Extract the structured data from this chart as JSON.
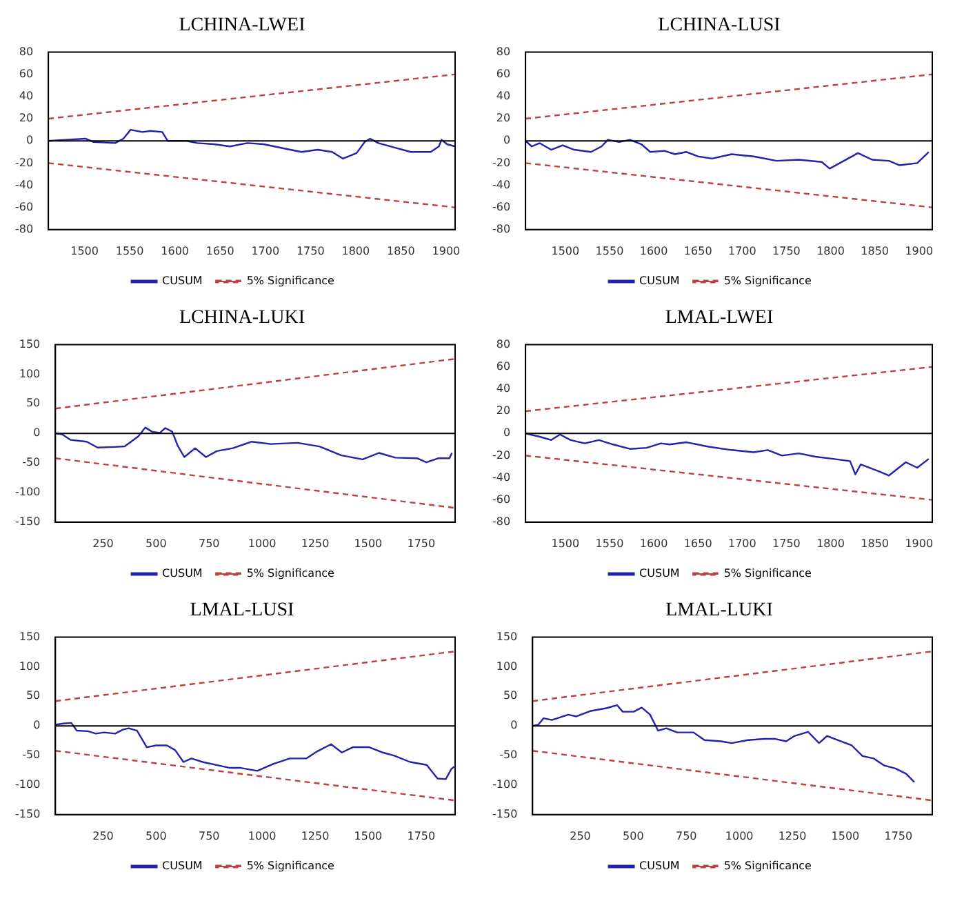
{
  "chart_data": [
    {
      "type": "line",
      "title": "LCHINA-LWEI",
      "legend": "bottom",
      "grid": false,
      "xlim": [
        1460,
        1910
      ],
      "xticks": [
        1500,
        1550,
        1600,
        1650,
        1700,
        1750,
        1800,
        1850,
        1900
      ],
      "ylim": [
        -80,
        80
      ],
      "yticks": [
        -80,
        -60,
        -40,
        -20,
        0,
        20,
        40,
        60,
        80
      ],
      "ref_lines": [
        {
          "axis": "y",
          "value": 0,
          "color": "#000000"
        }
      ],
      "series": [
        {
          "name": "CUSUM",
          "color": "#2222aa",
          "line_style": "solid",
          "x": [
            1460,
            1479,
            1501,
            1510,
            1534,
            1543,
            1551,
            1564,
            1573,
            1586,
            1592,
            1613,
            1625,
            1643,
            1661,
            1680,
            1698,
            1722,
            1740,
            1758,
            1774,
            1786,
            1801,
            1810,
            1816,
            1825,
            1843,
            1861,
            1883,
            1892,
            1895,
            1901,
            1910
          ],
          "values": [
            0,
            1,
            2,
            -1,
            -2,
            2,
            10,
            8,
            9,
            8,
            0,
            0,
            -2,
            -3,
            -5,
            -2,
            -3,
            -7,
            -10,
            -8,
            -10,
            -16,
            -11,
            -1,
            2,
            -2,
            -6,
            -10,
            -10,
            -5,
            1,
            -3,
            -5
          ]
        },
        {
          "name": "5% Significance",
          "color": "#c04040",
          "line_style": "dashed",
          "x": [
            1460,
            1910
          ],
          "values": [
            20,
            60
          ]
        },
        {
          "color": "#c04040",
          "line_style": "dashed",
          "x": [
            1460,
            1910
          ],
          "values": [
            -20,
            -60
          ]
        }
      ]
    },
    {
      "type": "line",
      "title": "LCHINA-LUSI",
      "legend": "bottom",
      "grid": false,
      "xlim": [
        1455,
        1915
      ],
      "xticks": [
        1500,
        1550,
        1600,
        1650,
        1700,
        1750,
        1800,
        1850,
        1900
      ],
      "ylim": [
        -80,
        80
      ],
      "yticks": [
        -80,
        -60,
        -40,
        -20,
        0,
        20,
        40,
        60,
        80
      ],
      "ref_lines": [
        {
          "axis": "y",
          "value": 0,
          "color": "#000000"
        }
      ],
      "series": [
        {
          "name": "CUSUM",
          "color": "#2222aa",
          "line_style": "solid",
          "x": [
            1455,
            1462,
            1471,
            1484,
            1497,
            1510,
            1529,
            1541,
            1548,
            1561,
            1573,
            1586,
            1596,
            1612,
            1624,
            1637,
            1650,
            1666,
            1688,
            1713,
            1739,
            1764,
            1790,
            1799,
            1815,
            1831,
            1847,
            1866,
            1878,
            1898,
            1911
          ],
          "values": [
            0,
            -5,
            -2,
            -8,
            -4,
            -8,
            -10,
            -5,
            1,
            -1,
            1,
            -3,
            -10,
            -9,
            -12,
            -10,
            -14,
            -16,
            -12,
            -14,
            -18,
            -17,
            -19,
            -25,
            -18,
            -11,
            -17,
            -18,
            -22,
            -20,
            -10
          ]
        },
        {
          "name": "5% Significance",
          "color": "#c04040",
          "line_style": "dashed",
          "x": [
            1455,
            1915
          ],
          "values": [
            20,
            60
          ]
        },
        {
          "color": "#c04040",
          "line_style": "dashed",
          "x": [
            1455,
            1915
          ],
          "values": [
            -20,
            -60
          ]
        }
      ]
    },
    {
      "type": "line",
      "title": "LCHINA-LUKI",
      "legend": "bottom",
      "grid": false,
      "xlim": [
        25,
        1910
      ],
      "xticks": [
        250,
        500,
        750,
        1000,
        1250,
        1500,
        1750
      ],
      "ylim": [
        -150,
        150
      ],
      "yticks": [
        -150,
        -100,
        -50,
        0,
        50,
        100,
        150
      ],
      "ref_lines": [
        {
          "axis": "y",
          "value": 0,
          "color": "#000000"
        }
      ],
      "series": [
        {
          "name": "CUSUM",
          "color": "#2222aa",
          "line_style": "solid",
          "x": [
            28,
            59,
            97,
            173,
            224,
            301,
            352,
            416,
            449,
            480,
            518,
            543,
            576,
            602,
            633,
            684,
            735,
            786,
            862,
            951,
            1041,
            1168,
            1270,
            1372,
            1474,
            1551,
            1628,
            1730,
            1775,
            1832,
            1883,
            1895
          ],
          "values": [
            0,
            -2,
            -11,
            -14,
            -24,
            -23,
            -22,
            -5,
            10,
            3,
            1,
            9,
            3,
            -21,
            -40,
            -25,
            -40,
            -30,
            -25,
            -14,
            -18,
            -16,
            -22,
            -37,
            -44,
            -33,
            -41,
            -42,
            -49,
            -42,
            -42,
            -33
          ]
        },
        {
          "name": "5% Significance",
          "color": "#c04040",
          "line_style": "dashed",
          "x": [
            25,
            1910
          ],
          "values": [
            42,
            126
          ]
        },
        {
          "color": "#c04040",
          "line_style": "dashed",
          "x": [
            25,
            1910
          ],
          "values": [
            -42,
            -126
          ]
        }
      ]
    },
    {
      "type": "line",
      "title": "LMAL-LWEI",
      "legend": "bottom",
      "grid": false,
      "xlim": [
        1455,
        1915
      ],
      "xticks": [
        1500,
        1550,
        1600,
        1650,
        1700,
        1750,
        1800,
        1850,
        1900
      ],
      "ylim": [
        -80,
        80
      ],
      "yticks": [
        -80,
        -60,
        -40,
        -20,
        0,
        20,
        40,
        60,
        80
      ],
      "ref_lines": [
        {
          "axis": "y",
          "value": 0,
          "color": "#000000"
        }
      ],
      "series": [
        {
          "name": "CUSUM",
          "color": "#2222aa",
          "line_style": "solid",
          "x": [
            1455,
            1471,
            1484,
            1494,
            1506,
            1522,
            1538,
            1554,
            1573,
            1592,
            1608,
            1618,
            1637,
            1662,
            1688,
            1713,
            1729,
            1745,
            1764,
            1783,
            1803,
            1822,
            1828,
            1834,
            1854,
            1866,
            1885,
            1898,
            1911
          ],
          "values": [
            0,
            -3,
            -6,
            -1,
            -6,
            -9,
            -6,
            -10,
            -14,
            -13,
            -9,
            -10,
            -8,
            -12,
            -15,
            -17,
            -15,
            -20,
            -18,
            -21,
            -23,
            -25,
            -37,
            -28,
            -34,
            -38,
            -26,
            -31,
            -23
          ]
        },
        {
          "name": "5% Significance",
          "color": "#c04040",
          "line_style": "dashed",
          "x": [
            1455,
            1915
          ],
          "values": [
            20,
            60
          ]
        },
        {
          "color": "#c04040",
          "line_style": "dashed",
          "x": [
            1455,
            1915
          ],
          "values": [
            -20,
            -60
          ]
        }
      ]
    },
    {
      "type": "line",
      "title": "LMAL-LUSI",
      "legend": "bottom",
      "grid": false,
      "xlim": [
        25,
        1910
      ],
      "xticks": [
        250,
        500,
        750,
        1000,
        1250,
        1500,
        1750
      ],
      "ylim": [
        -150,
        150
      ],
      "yticks": [
        -150,
        -100,
        -50,
        0,
        50,
        100,
        150
      ],
      "ref_lines": [
        {
          "axis": "y",
          "value": 0,
          "color": "#000000"
        }
      ],
      "series": [
        {
          "name": "CUSUM",
          "color": "#2222aa",
          "line_style": "solid",
          "x": [
            25,
            62,
            100,
            126,
            178,
            216,
            255,
            307,
            345,
            371,
            410,
            456,
            500,
            551,
            590,
            629,
            667,
            719,
            796,
            848,
            899,
            977,
            1054,
            1131,
            1209,
            1260,
            1325,
            1376,
            1428,
            1505,
            1569,
            1621,
            1698,
            1776,
            1827,
            1866,
            1892,
            1905
          ],
          "values": [
            2,
            4,
            5,
            -8,
            -9,
            -13,
            -11,
            -13,
            -6,
            -4,
            -8,
            -36,
            -33,
            -33,
            -41,
            -61,
            -55,
            -61,
            -67,
            -71,
            -71,
            -76,
            -64,
            -55,
            -55,
            -43,
            -31,
            -45,
            -36,
            -36,
            -45,
            -50,
            -61,
            -66,
            -89,
            -90,
            -73,
            -69
          ]
        },
        {
          "name": "5% Significance",
          "color": "#c04040",
          "line_style": "dashed",
          "x": [
            25,
            1910
          ],
          "values": [
            42,
            126
          ]
        },
        {
          "color": "#c04040",
          "line_style": "dashed",
          "x": [
            25,
            1910
          ],
          "values": [
            -42,
            -126
          ]
        }
      ]
    },
    {
      "type": "line",
      "title": "LMAL-LUKI",
      "legend": "bottom",
      "grid": false,
      "xlim": [
        25,
        1910
      ],
      "xticks": [
        250,
        500,
        750,
        1000,
        1250,
        1500,
        1750
      ],
      "ylim": [
        -150,
        150
      ],
      "yticks": [
        -150,
        -100,
        -50,
        0,
        50,
        100,
        150
      ],
      "ref_lines": [
        {
          "axis": "y",
          "value": 0,
          "color": "#000000"
        }
      ],
      "series": [
        {
          "name": "CUSUM",
          "color": "#2222aa",
          "line_style": "solid",
          "x": [
            26,
            52,
            77,
            116,
            142,
            193,
            232,
            296,
            373,
            424,
            450,
            502,
            540,
            579,
            617,
            656,
            707,
            784,
            836,
            913,
            964,
            1041,
            1119,
            1170,
            1221,
            1260,
            1324,
            1376,
            1414,
            1478,
            1530,
            1581,
            1633,
            1684,
            1736,
            1787,
            1825
          ],
          "values": [
            0,
            2,
            13,
            10,
            13,
            19,
            16,
            25,
            30,
            35,
            24,
            24,
            31,
            19,
            -8,
            -4,
            -11,
            -11,
            -24,
            -26,
            -29,
            -24,
            -22,
            -22,
            -26,
            -17,
            -10,
            -29,
            -17,
            -26,
            -33,
            -51,
            -55,
            -67,
            -72,
            -81,
            -95
          ]
        },
        {
          "name": "5% Significance",
          "color": "#c04040",
          "line_style": "dashed",
          "x": [
            25,
            1910
          ],
          "values": [
            42,
            126
          ]
        },
        {
          "color": "#c04040",
          "line_style": "dashed",
          "x": [
            25,
            1910
          ],
          "values": [
            -42,
            -126
          ]
        }
      ]
    }
  ]
}
